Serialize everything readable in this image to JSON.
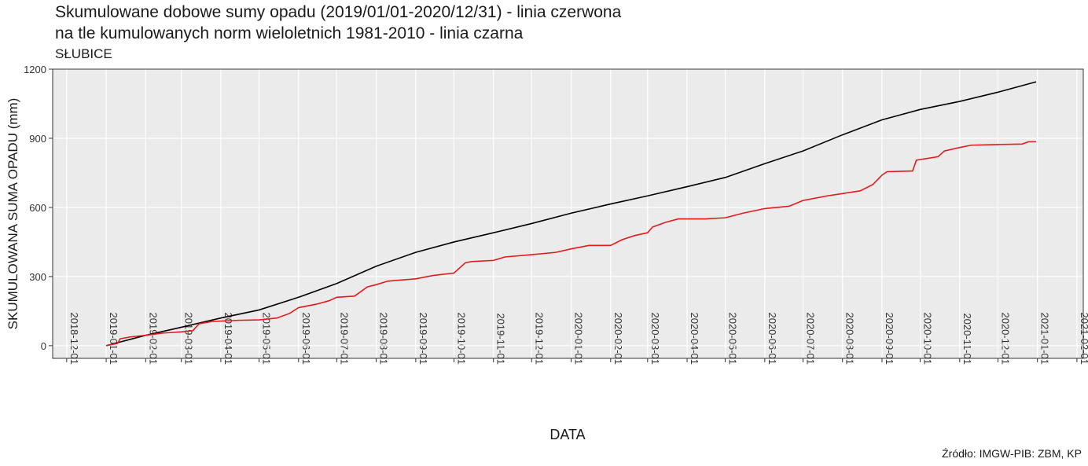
{
  "chart_data": {
    "type": "line",
    "title": "Skumulowane dobowe sumy opadu (2019/01/01-2020/12/31) - linia czerwona",
    "title2": "na tle kumulowanych norm wieloletnich 1981-2010 - linia czarna",
    "subtitle": "SŁUBICE",
    "x_label": "DATA",
    "y_label": "SKUMULOWANA SUMA OPADU (mm)",
    "source": "Źródło: IMGW-PIB: ZBM, KP",
    "xlim": [
      "2018-11-20",
      "2021-02-06"
    ],
    "xticks": [
      "2018-12-01",
      "2019-01-01",
      "2019-02-01",
      "2019-03-01",
      "2019-04-01",
      "2019-05-01",
      "2019-06-01",
      "2019-07-01",
      "2019-08-01",
      "2019-09-01",
      "2019-10-01",
      "2019-11-01",
      "2019-12-01",
      "2020-01-01",
      "2020-02-01",
      "2020-03-01",
      "2020-04-01",
      "2020-05-01",
      "2020-06-01",
      "2020-07-01",
      "2020-08-01",
      "2020-09-01",
      "2020-10-01",
      "2020-11-01",
      "2020-12-01",
      "2021-01-01",
      "2021-02-01"
    ],
    "ylim": [
      -55,
      1200
    ],
    "yticks": [
      0,
      300,
      600,
      900,
      1200
    ],
    "grid": true,
    "series": [
      {
        "color": "#000000",
        "x": [
          "2019-01-01",
          "2019-02-01",
          "2019-03-01",
          "2019-04-01",
          "2019-05-01",
          "2019-06-01",
          "2019-07-01",
          "2019-08-01",
          "2019-09-01",
          "2019-10-01",
          "2019-11-01",
          "2019-12-01",
          "2020-01-01",
          "2020-02-01",
          "2020-03-01",
          "2020-04-01",
          "2020-05-01",
          "2020-06-01",
          "2020-07-01",
          "2020-08-01",
          "2020-09-01",
          "2020-10-01",
          "2020-11-01",
          "2020-12-01",
          "2020-12-31"
        ],
        "values": [
          0,
          45,
          80,
          120,
          155,
          210,
          270,
          345,
          405,
          450,
          490,
          530,
          575,
          615,
          650,
          690,
          730,
          790,
          845,
          915,
          980,
          1025,
          1060,
          1100,
          1145
        ]
      },
      {
        "color": "#e31a1c",
        "x": [
          "2019-01-01",
          "2019-01-10",
          "2019-01-12",
          "2019-01-20",
          "2019-02-01",
          "2019-02-15",
          "2019-03-01",
          "2019-03-10",
          "2019-03-15",
          "2019-03-25",
          "2019-04-15",
          "2019-05-01",
          "2019-05-15",
          "2019-05-25",
          "2019-06-01",
          "2019-06-15",
          "2019-06-25",
          "2019-07-01",
          "2019-07-15",
          "2019-07-25",
          "2019-08-01",
          "2019-08-10",
          "2019-09-01",
          "2019-09-15",
          "2019-10-01",
          "2019-10-10",
          "2019-10-15",
          "2019-11-01",
          "2019-11-10",
          "2019-12-01",
          "2019-12-20",
          "2020-01-01",
          "2020-01-15",
          "2020-02-01",
          "2020-02-10",
          "2020-02-20",
          "2020-03-01",
          "2020-03-05",
          "2020-03-15",
          "2020-03-25",
          "2020-04-15",
          "2020-05-01",
          "2020-05-15",
          "2020-06-01",
          "2020-06-20",
          "2020-07-01",
          "2020-07-20",
          "2020-08-01",
          "2020-08-15",
          "2020-08-25",
          "2020-09-01",
          "2020-09-05",
          "2020-09-25",
          "2020-09-28",
          "2020-10-15",
          "2020-10-20",
          "2020-11-01",
          "2020-11-10",
          "2020-12-01",
          "2020-12-20",
          "2020-12-25",
          "2020-12-31"
        ],
        "values": [
          0,
          10,
          30,
          38,
          45,
          55,
          60,
          65,
          95,
          105,
          110,
          112,
          120,
          140,
          165,
          180,
          195,
          210,
          215,
          255,
          265,
          280,
          290,
          305,
          315,
          360,
          365,
          370,
          385,
          395,
          405,
          420,
          435,
          435,
          460,
          478,
          490,
          515,
          535,
          550,
          550,
          555,
          575,
          595,
          605,
          630,
          650,
          660,
          672,
          700,
          740,
          755,
          758,
          805,
          820,
          845,
          860,
          870,
          873,
          875,
          885,
          885
        ]
      }
    ]
  }
}
